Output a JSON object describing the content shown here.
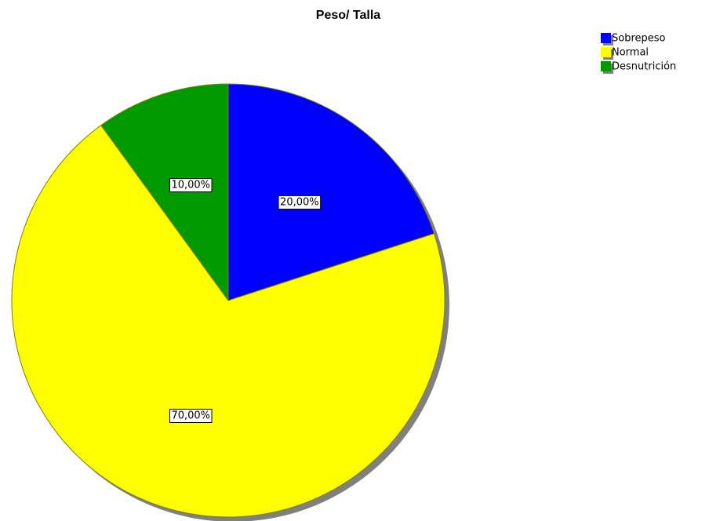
{
  "chart_data": {
    "type": "pie",
    "title": "Peso/ Talla",
    "categories": [
      "Sobrepeso",
      "Normal",
      "Desnutrición"
    ],
    "values": [
      20,
      70,
      10
    ],
    "value_labels": [
      "20,00%",
      "70,00%",
      "10,00%"
    ],
    "colors": [
      "#0000ff",
      "#ffff00",
      "#009900"
    ],
    "legend": "top-right"
  }
}
